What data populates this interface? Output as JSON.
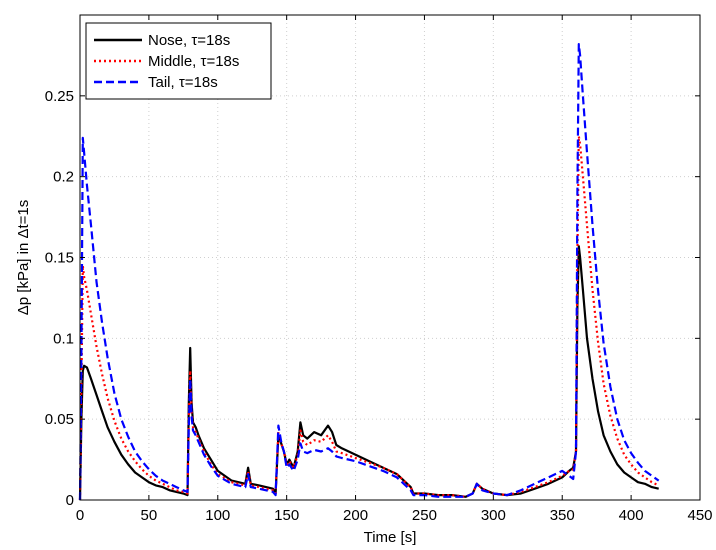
{
  "chart_data": {
    "type": "line",
    "title": "",
    "xlabel": "Time [s]",
    "ylabel": "Δp [kPa] in Δt=1s",
    "xlim": [
      0,
      450
    ],
    "ylim": [
      0,
      0.3
    ],
    "xticks": [
      0,
      50,
      100,
      150,
      200,
      250,
      300,
      350,
      400,
      450
    ],
    "yticks": [
      0,
      0.05,
      0.1,
      0.15,
      0.2,
      0.25
    ],
    "xtick_labels": [
      "0",
      "50",
      "100",
      "150",
      "200",
      "250",
      "300",
      "350",
      "400",
      "450"
    ],
    "ytick_labels": [
      "0",
      "0.05",
      "0.1",
      "0.15",
      "0.2",
      "0.25"
    ],
    "grid": true,
    "legend_position": "top-left",
    "series": [
      {
        "name": "Nose, τ=18s",
        "color": "#000000",
        "style": "solid",
        "x": [
          0,
          1,
          2,
          3,
          5,
          8,
          12,
          16,
          20,
          25,
          30,
          35,
          40,
          45,
          50,
          55,
          60,
          65,
          70,
          75,
          78,
          79,
          80,
          81,
          82,
          84,
          86,
          90,
          95,
          100,
          110,
          120,
          122,
          124,
          130,
          140,
          142,
          144,
          146,
          148,
          150,
          152,
          155,
          158,
          160,
          162,
          165,
          170,
          175,
          180,
          183,
          186,
          190,
          200,
          210,
          220,
          230,
          235,
          240,
          242,
          250,
          260,
          270,
          280,
          285,
          288,
          292,
          300,
          310,
          320,
          330,
          340,
          350,
          355,
          358,
          360,
          361,
          362,
          363,
          365,
          368,
          372,
          376,
          380,
          385,
          390,
          395,
          400,
          405,
          410,
          415,
          420
        ],
        "y": [
          0.0,
          0.05,
          0.08,
          0.083,
          0.082,
          0.075,
          0.065,
          0.055,
          0.045,
          0.036,
          0.028,
          0.022,
          0.017,
          0.014,
          0.011,
          0.009,
          0.008,
          0.006,
          0.005,
          0.004,
          0.003,
          0.06,
          0.094,
          0.06,
          0.048,
          0.045,
          0.04,
          0.032,
          0.025,
          0.018,
          0.012,
          0.01,
          0.02,
          0.01,
          0.009,
          0.007,
          0.004,
          0.04,
          0.035,
          0.03,
          0.022,
          0.025,
          0.02,
          0.03,
          0.048,
          0.04,
          0.038,
          0.042,
          0.04,
          0.046,
          0.042,
          0.034,
          0.032,
          0.028,
          0.024,
          0.02,
          0.016,
          0.012,
          0.008,
          0.004,
          0.004,
          0.003,
          0.003,
          0.002,
          0.004,
          0.01,
          0.007,
          0.004,
          0.003,
          0.004,
          0.007,
          0.01,
          0.014,
          0.018,
          0.02,
          0.03,
          0.12,
          0.157,
          0.15,
          0.13,
          0.1,
          0.075,
          0.055,
          0.04,
          0.03,
          0.022,
          0.017,
          0.014,
          0.011,
          0.01,
          0.008,
          0.007
        ]
      },
      {
        "name": "Middle, τ=18s",
        "color": "#ff0000",
        "style": "dotted",
        "x": [
          0,
          1,
          2,
          3,
          5,
          8,
          12,
          16,
          20,
          25,
          30,
          35,
          40,
          45,
          50,
          55,
          60,
          65,
          70,
          75,
          78,
          79,
          80,
          81,
          82,
          84,
          86,
          90,
          95,
          100,
          110,
          120,
          122,
          124,
          130,
          140,
          142,
          144,
          146,
          148,
          150,
          152,
          155,
          158,
          160,
          162,
          165,
          170,
          175,
          180,
          183,
          186,
          190,
          200,
          210,
          220,
          230,
          235,
          240,
          242,
          250,
          260,
          270,
          280,
          285,
          288,
          292,
          300,
          310,
          320,
          330,
          340,
          350,
          355,
          358,
          360,
          361,
          362,
          363,
          365,
          368,
          372,
          376,
          380,
          385,
          390,
          395,
          400,
          405,
          410,
          415,
          420
        ],
        "y": [
          0.0,
          0.07,
          0.145,
          0.138,
          0.13,
          0.115,
          0.095,
          0.078,
          0.063,
          0.049,
          0.038,
          0.03,
          0.024,
          0.019,
          0.015,
          0.012,
          0.01,
          0.008,
          0.006,
          0.005,
          0.004,
          0.05,
          0.08,
          0.055,
          0.045,
          0.042,
          0.038,
          0.03,
          0.022,
          0.016,
          0.011,
          0.009,
          0.018,
          0.009,
          0.008,
          0.006,
          0.004,
          0.042,
          0.035,
          0.03,
          0.022,
          0.024,
          0.02,
          0.028,
          0.043,
          0.036,
          0.034,
          0.037,
          0.036,
          0.04,
          0.036,
          0.03,
          0.029,
          0.026,
          0.023,
          0.02,
          0.016,
          0.012,
          0.008,
          0.004,
          0.004,
          0.003,
          0.003,
          0.002,
          0.004,
          0.01,
          0.007,
          0.004,
          0.003,
          0.005,
          0.008,
          0.011,
          0.015,
          0.018,
          0.019,
          0.03,
          0.15,
          0.225,
          0.22,
          0.2,
          0.17,
          0.13,
          0.098,
          0.072,
          0.052,
          0.038,
          0.028,
          0.022,
          0.017,
          0.014,
          0.011,
          0.009
        ]
      },
      {
        "name": "Tail, τ=18s",
        "color": "#0000ff",
        "style": "dashed",
        "x": [
          0,
          1,
          2,
          3,
          5,
          8,
          12,
          16,
          20,
          25,
          30,
          35,
          40,
          45,
          50,
          55,
          60,
          65,
          70,
          75,
          78,
          79,
          80,
          81,
          82,
          84,
          86,
          90,
          95,
          100,
          110,
          120,
          122,
          124,
          130,
          140,
          142,
          144,
          146,
          148,
          150,
          152,
          155,
          158,
          160,
          162,
          165,
          170,
          175,
          180,
          183,
          186,
          190,
          200,
          210,
          220,
          230,
          235,
          240,
          242,
          250,
          260,
          270,
          280,
          285,
          288,
          292,
          300,
          310,
          320,
          330,
          340,
          350,
          355,
          358,
          360,
          361,
          362,
          363,
          365,
          368,
          372,
          376,
          380,
          385,
          390,
          395,
          400,
          405,
          410,
          415,
          420
        ],
        "y": [
          0.0,
          0.09,
          0.224,
          0.215,
          0.195,
          0.17,
          0.135,
          0.11,
          0.088,
          0.066,
          0.05,
          0.039,
          0.03,
          0.024,
          0.019,
          0.015,
          0.012,
          0.01,
          0.008,
          0.006,
          0.005,
          0.045,
          0.075,
          0.052,
          0.043,
          0.04,
          0.036,
          0.028,
          0.021,
          0.015,
          0.01,
          0.008,
          0.016,
          0.008,
          0.007,
          0.005,
          0.003,
          0.046,
          0.036,
          0.03,
          0.02,
          0.022,
          0.018,
          0.025,
          0.035,
          0.03,
          0.029,
          0.031,
          0.03,
          0.032,
          0.03,
          0.027,
          0.026,
          0.024,
          0.021,
          0.018,
          0.014,
          0.01,
          0.006,
          0.003,
          0.003,
          0.002,
          0.002,
          0.002,
          0.004,
          0.01,
          0.006,
          0.004,
          0.003,
          0.006,
          0.01,
          0.014,
          0.018,
          0.015,
          0.013,
          0.03,
          0.19,
          0.282,
          0.275,
          0.25,
          0.215,
          0.17,
          0.13,
          0.097,
          0.07,
          0.05,
          0.037,
          0.029,
          0.023,
          0.018,
          0.015,
          0.012
        ]
      }
    ]
  }
}
